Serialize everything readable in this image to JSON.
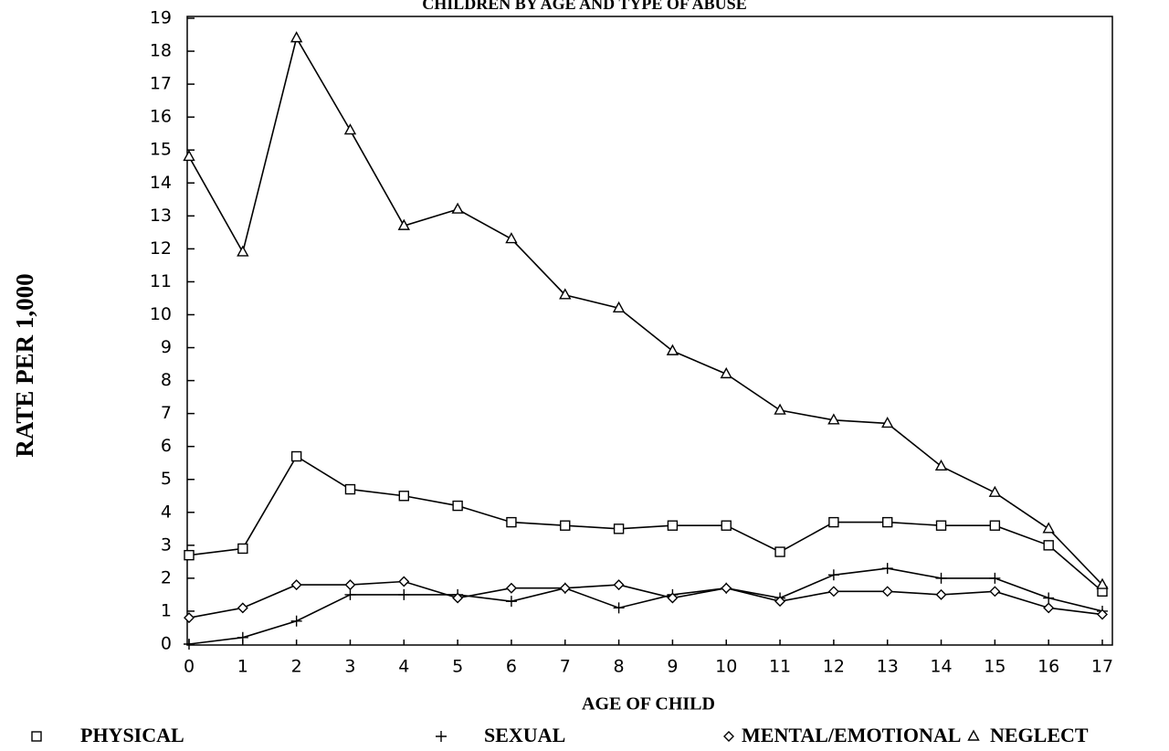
{
  "chart_data": {
    "type": "line",
    "title": "CHILDREN BY AGE AND TYPE OF ABUSE",
    "x_label": "AGE OF CHILD",
    "y_label": "RATE PER 1,000",
    "x": [
      0,
      1,
      2,
      3,
      4,
      5,
      6,
      7,
      8,
      9,
      10,
      11,
      12,
      13,
      14,
      15,
      16,
      17
    ],
    "xlim": [
      0,
      17
    ],
    "xticks": [
      0,
      1,
      2,
      3,
      4,
      5,
      6,
      7,
      8,
      9,
      10,
      11,
      12,
      13,
      14,
      15,
      16,
      17
    ],
    "ylim": [
      0,
      19
    ],
    "yticks": [
      0,
      1,
      2,
      3,
      4,
      5,
      6,
      7,
      8,
      9,
      10,
      11,
      12,
      13,
      14,
      15,
      16,
      17,
      18,
      19
    ],
    "grid": false,
    "legend": "bottom",
    "series": [
      {
        "name": "PHYSICAL",
        "color": "#000000",
        "marker": "square",
        "values": [
          2.7,
          2.9,
          5.7,
          4.7,
          4.5,
          4.2,
          3.7,
          3.6,
          3.5,
          3.6,
          3.6,
          2.8,
          3.7,
          3.7,
          3.6,
          3.6,
          3.0,
          1.6
        ]
      },
      {
        "name": "SEXUAL",
        "color": "#000000",
        "marker": "plus",
        "values": [
          0,
          0.2,
          0.7,
          1.5,
          1.5,
          1.5,
          1.3,
          1.7,
          1.1,
          1.5,
          1.7,
          1.4,
          2.1,
          2.3,
          2.0,
          2.0,
          1.4,
          1.0
        ]
      },
      {
        "name": "MENTAL/EMOTIONAL",
        "color": "#000000",
        "marker": "diamond",
        "values": [
          0.8,
          1.1,
          1.8,
          1.8,
          1.9,
          1.4,
          1.7,
          1.7,
          1.8,
          1.4,
          1.7,
          1.3,
          1.6,
          1.6,
          1.5,
          1.6,
          1.1,
          0.9
        ]
      },
      {
        "name": "NEGLECT",
        "color": "#000000",
        "marker": "triangle",
        "values": [
          14.8,
          11.9,
          18.4,
          15.6,
          12.7,
          13.2,
          12.3,
          10.6,
          10.2,
          8.9,
          8.2,
          7.1,
          6.8,
          6.7,
          5.4,
          4.6,
          3.5,
          1.8
        ]
      }
    ]
  }
}
